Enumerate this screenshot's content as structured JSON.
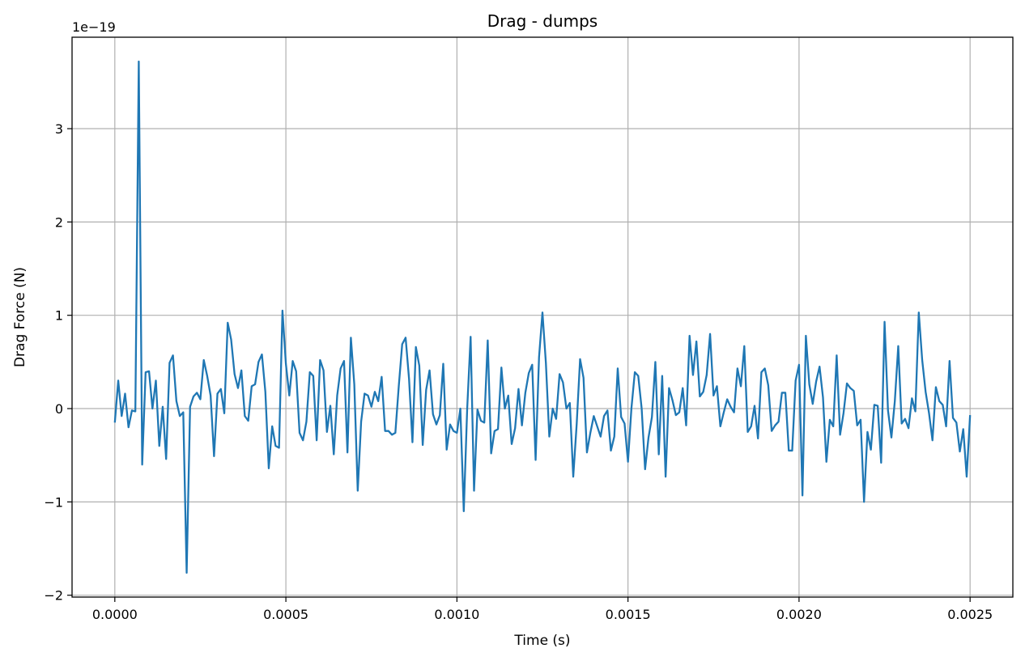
{
  "colors": {
    "line": "#1f77b4",
    "grid": "#b0b0b0",
    "axes": "#000000"
  },
  "chart_data": {
    "type": "line",
    "title": "Drag - dumps",
    "xlabel": "Time (s)",
    "ylabel": "Drag Force (N)",
    "y_scale_label": "1e−19",
    "xlim": [
      -0.000125,
      0.002625
    ],
    "ylim": [
      -2.02,
      3.98
    ],
    "xticks": [
      0.0,
      0.0005,
      0.001,
      0.0015,
      0.002,
      0.0025
    ],
    "xtick_labels": [
      "0.0000",
      "0.0005",
      "0.0010",
      "0.0015",
      "0.0020",
      "0.0025"
    ],
    "yticks": [
      -2,
      -1,
      0,
      1,
      2,
      3
    ],
    "ytick_labels": [
      "−2",
      "−1",
      "0",
      "1",
      "2",
      "3"
    ],
    "grid": true,
    "series": [
      {
        "x_start": 0.0,
        "x_end": 0.0025,
        "values": [
          -0.15,
          0.3,
          -0.08,
          0.16,
          -0.2,
          -0.02,
          -0.03,
          3.72,
          -0.6,
          0.39,
          0.4,
          0.0,
          0.3,
          -0.4,
          0.02,
          -0.54,
          0.49,
          0.57,
          0.08,
          -0.08,
          -0.04,
          -1.76,
          0.02,
          0.13,
          0.17,
          0.1,
          0.52,
          0.35,
          0.14,
          -0.51,
          0.16,
          0.21,
          -0.05,
          0.92,
          0.74,
          0.37,
          0.22,
          0.41,
          -0.08,
          -0.13,
          0.24,
          0.26,
          0.5,
          0.58,
          0.18,
          -0.64,
          -0.19,
          -0.4,
          -0.42,
          1.05,
          0.48,
          0.14,
          0.51,
          0.4,
          -0.26,
          -0.34,
          -0.14,
          0.39,
          0.35,
          -0.34,
          0.52,
          0.41,
          -0.25,
          0.03,
          -0.49,
          0.14,
          0.43,
          0.51,
          -0.47,
          0.76,
          0.26,
          -0.88,
          -0.14,
          0.16,
          0.14,
          0.02,
          0.18,
          0.08,
          0.34,
          -0.24,
          -0.24,
          -0.28,
          -0.26,
          0.24,
          0.69,
          0.76,
          0.32,
          -0.36,
          0.66,
          0.46,
          -0.39,
          0.2,
          0.41,
          -0.06,
          -0.17,
          -0.07,
          0.48,
          -0.44,
          -0.17,
          -0.24,
          -0.26,
          0.0,
          -1.1,
          0.0,
          0.77,
          -0.88,
          -0.01,
          -0.13,
          -0.15,
          0.73,
          -0.48,
          -0.24,
          -0.22,
          0.44,
          0.0,
          0.14,
          -0.38,
          -0.21,
          0.21,
          -0.18,
          0.17,
          0.38,
          0.47,
          -0.55,
          0.55,
          1.03,
          0.49,
          -0.3,
          0.0,
          -0.11,
          0.37,
          0.28,
          0.0,
          0.06,
          -0.73,
          -0.17,
          0.53,
          0.33,
          -0.47,
          -0.26,
          -0.08,
          -0.19,
          -0.3,
          -0.08,
          -0.02,
          -0.45,
          -0.3,
          0.43,
          -0.09,
          -0.16,
          -0.57,
          0.0,
          0.39,
          0.35,
          0.0,
          -0.65,
          -0.31,
          -0.09,
          0.5,
          -0.49,
          0.35,
          -0.73,
          0.22,
          0.09,
          -0.07,
          -0.04,
          0.22,
          -0.18,
          0.78,
          0.36,
          0.72,
          0.13,
          0.18,
          0.36,
          0.8,
          0.14,
          0.24,
          -0.19,
          -0.04,
          0.1,
          0.02,
          -0.04,
          0.43,
          0.24,
          0.67,
          -0.25,
          -0.19,
          0.03,
          -0.32,
          0.39,
          0.43,
          0.25,
          -0.24,
          -0.18,
          -0.14,
          0.17,
          0.17,
          -0.45,
          -0.45,
          0.3,
          0.47,
          -0.93,
          0.78,
          0.26,
          0.05,
          0.29,
          0.45,
          0.12,
          -0.57,
          -0.12,
          -0.19,
          0.57,
          -0.28,
          -0.05,
          0.27,
          0.22,
          0.19,
          -0.18,
          -0.12,
          -1.0,
          -0.25,
          -0.44,
          0.04,
          0.03,
          -0.58,
          0.93,
          -0.02,
          -0.31,
          0.08,
          0.67,
          -0.16,
          -0.11,
          -0.21,
          0.11,
          -0.03,
          1.03,
          0.52,
          0.18,
          -0.05,
          -0.34,
          0.23,
          0.08,
          0.04,
          -0.19,
          0.51,
          -0.1,
          -0.15,
          -0.46,
          -0.22,
          -0.73,
          -0.07
        ]
      }
    ]
  }
}
